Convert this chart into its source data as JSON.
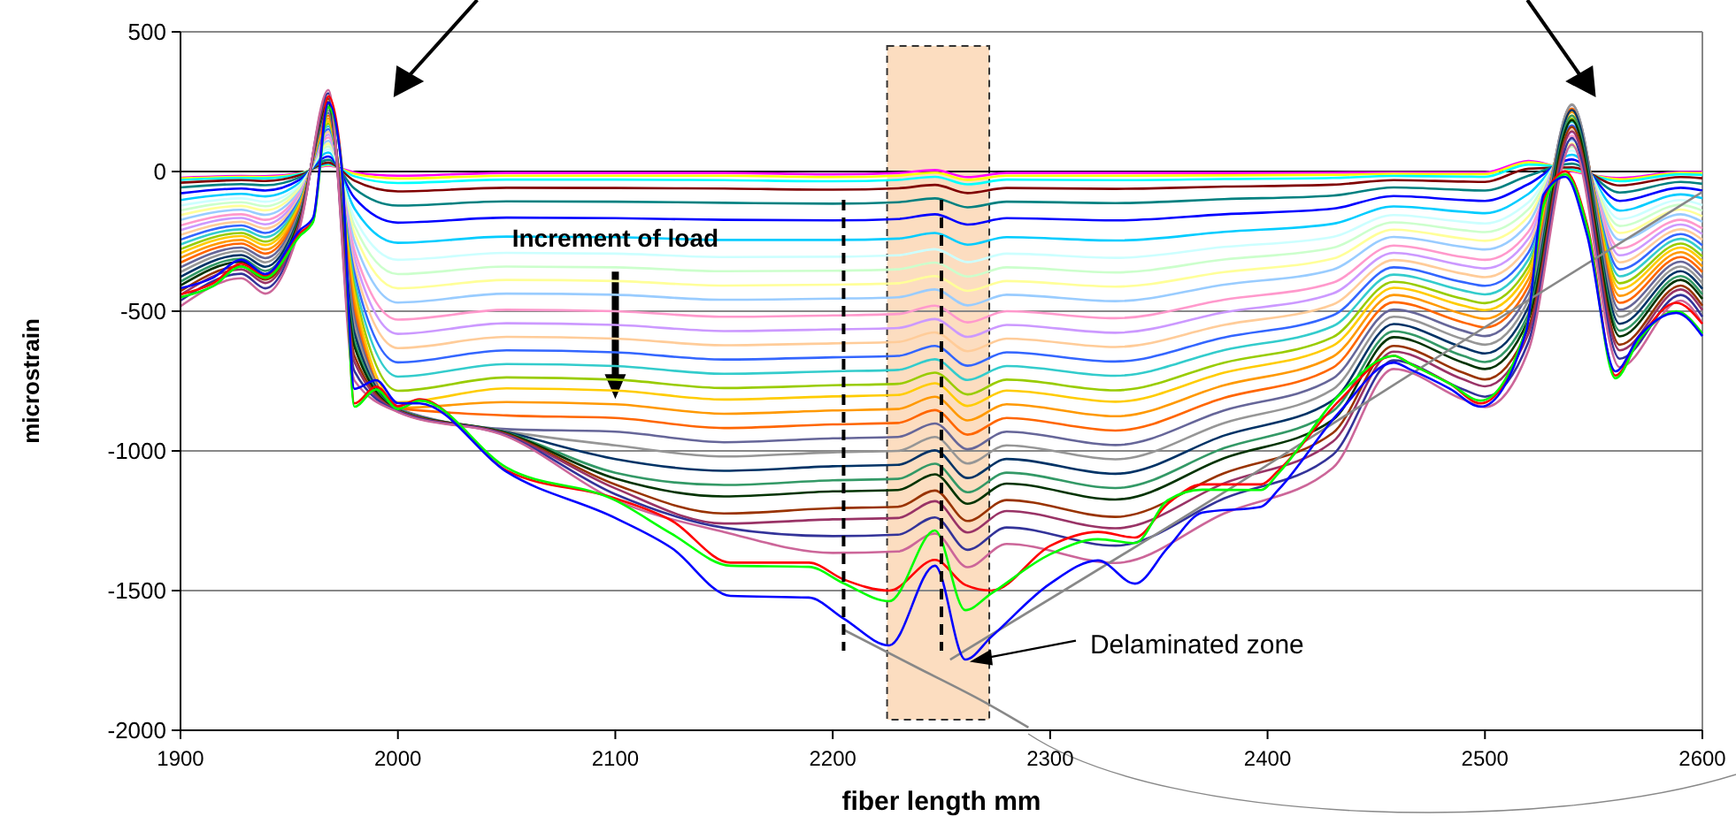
{
  "chart_data": {
    "type": "line",
    "xlabel": "fiber length  mm",
    "ylabel": "microstrain",
    "xlim": [
      1900,
      2600
    ],
    "xticks": [
      1900,
      2000,
      2100,
      2200,
      2300,
      2400,
      2500,
      2600
    ],
    "ylim": [
      -2000,
      500
    ],
    "yticks": [
      -2000,
      -1500,
      -1000,
      -500,
      0,
      500
    ],
    "grid": "y",
    "marker": "none",
    "line_style": "solid",
    "x": [
      1900,
      1928,
      1939,
      1955,
      1968,
      1980,
      2000,
      2050,
      2100,
      2150,
      2200,
      2230,
      2247,
      2262,
      2280,
      2330,
      2380,
      2430,
      2458,
      2490,
      2500,
      2520,
      2540,
      2562,
      2590,
      2600
    ],
    "annotations": [
      {
        "text": "Increment of load",
        "x": 2100,
        "y": -270
      },
      {
        "text": "Delaminated zone",
        "x": 2263,
        "y": -1755
      }
    ],
    "ref_lines": [
      {
        "axis": "x",
        "value": 2205,
        "line_style": "dashed",
        "color": "#000000"
      },
      {
        "axis": "x",
        "value": 2250,
        "line_style": "dashed",
        "color": "#000000"
      }
    ],
    "bands": [
      {
        "axis": "x",
        "from": 2225,
        "to": 2272,
        "color": "#fbd5b0"
      }
    ],
    "series": [
      {
        "color": "#ff00ff",
        "values": [
          -22,
          -16,
          -17,
          -6,
          21,
          -3,
          -15,
          -5,
          -5,
          -5,
          -10,
          -5,
          5,
          -20,
          -5,
          -5,
          -5,
          -4,
          -3,
          -3,
          -3,
          38,
          1,
          -23,
          -2,
          -2
        ]
      },
      {
        "color": "#ffff00",
        "values": [
          -25,
          -19,
          -20,
          -7,
          23,
          -8,
          -25,
          -15,
          -15,
          -15,
          -20,
          -15,
          -4,
          -30,
          -15,
          -15,
          -14,
          -12,
          -8,
          -9,
          -9,
          33,
          4,
          -28,
          -5,
          -6
        ]
      },
      {
        "color": "#00ffff",
        "values": [
          -30,
          -23,
          -24,
          -9,
          26,
          -17,
          -41,
          -29,
          -29,
          -31,
          -35,
          -30,
          -19,
          -46,
          -29,
          -31,
          -27,
          -23,
          -16,
          -18,
          -19,
          25,
          8,
          -35,
          -10,
          -12
        ]
      },
      {
        "color": "#800000",
        "values": [
          -40,
          -31,
          -34,
          -13,
          32,
          -33,
          -71,
          -58,
          -59,
          -61,
          -65,
          -60,
          -48,
          -77,
          -59,
          -62,
          -54,
          -47,
          -31,
          -36,
          -37,
          10,
          15,
          -50,
          -20,
          -24
        ]
      },
      {
        "color": "#008080",
        "values": [
          -57,
          -45,
          -49,
          -20,
          42,
          -61,
          -122,
          -107,
          -108,
          -112,
          -115,
          -110,
          -96,
          -128,
          -108,
          -113,
          -99,
          -86,
          -57,
          -66,
          -68,
          -15,
          28,
          -75,
          -37,
          -44
        ]
      },
      {
        "color": "#0000ff",
        "values": [
          -78,
          -61,
          -68,
          -29,
          54,
          -94,
          -183,
          -165,
          -167,
          -173,
          -175,
          -170,
          -153,
          -190,
          -167,
          -175,
          -153,
          -133,
          -88,
          -102,
          -105,
          -45,
          43,
          -105,
          -58,
          -68
        ]
      },
      {
        "color": "#00ccff",
        "values": [
          -102,
          -80,
          -89,
          -39,
          68,
          -132,
          -255,
          -233,
          -235,
          -245,
          -245,
          -240,
          -220,
          -262,
          -235,
          -247,
          -216,
          -187,
          -125,
          -144,
          -149,
          -80,
          60,
          -140,
          -82,
          -96
        ]
      },
      {
        "color": "#ccffff",
        "values": [
          -122,
          -96,
          -108,
          -47,
          80,
          -165,
          -316,
          -291,
          -294,
          -306,
          -305,
          -300,
          -278,
          -324,
          -294,
          -309,
          -270,
          -234,
          -156,
          -180,
          -186,
          -110,
          75,
          -170,
          -102,
          -120
        ]
      },
      {
        "color": "#ccffcc",
        "values": [
          -139,
          -110,
          -124,
          -54,
          90,
          -193,
          -367,
          -340,
          -343,
          -357,
          -355,
          -350,
          -326,
          -376,
          -343,
          -361,
          -315,
          -273,
          -182,
          -210,
          -217,
          -135,
          88,
          -195,
          -119,
          -140
        ]
      },
      {
        "color": "#ffff99",
        "values": [
          -156,
          -123,
          -139,
          -61,
          100,
          -220,
          -418,
          -388,
          -392,
          -408,
          -405,
          -400,
          -374,
          -427,
          -392,
          -412,
          -360,
          -312,
          -208,
          -240,
          -248,
          -160,
          100,
          -220,
          -136,
          -160
        ]
      },
      {
        "color": "#99ccff",
        "values": [
          -173,
          -137,
          -155,
          -68,
          110,
          -248,
          -469,
          -437,
          -441,
          -459,
          -455,
          -450,
          -422,
          -479,
          -441,
          -464,
          -405,
          -351,
          -234,
          -270,
          -279,
          -185,
          113,
          -245,
          -153,
          -180
        ]
      },
      {
        "color": "#ff99cc",
        "values": [
          -193,
          -153,
          -173,
          -76,
          122,
          -281,
          -530,
          -495,
          -500,
          -520,
          -515,
          -510,
          -480,
          -540,
          -500,
          -525,
          -459,
          -398,
          -265,
          -306,
          -316,
          -215,
          128,
          -275,
          -173,
          -204
        ]
      },
      {
        "color": "#cc99ff",
        "values": [
          -210,
          -166,
          -189,
          -83,
          132,
          -308,
          -581,
          -543,
          -549,
          -571,
          -565,
          -560,
          -528,
          -592,
          -549,
          -577,
          -504,
          -437,
          -291,
          -336,
          -347,
          -240,
          140,
          -300,
          -190,
          -224
        ]
      },
      {
        "color": "#ffcc99",
        "values": [
          -227,
          -180,
          -204,
          -90,
          142,
          -336,
          -632,
          -592,
          -598,
          -622,
          -615,
          -610,
          -576,
          -643,
          -598,
          -628,
          -549,
          -476,
          -317,
          -366,
          -378,
          -265,
          153,
          -325,
          -207,
          -244
        ]
      },
      {
        "color": "#3366ff",
        "values": [
          -244,
          -193,
          -220,
          -97,
          152,
          -363,
          -683,
          -640,
          -647,
          -673,
          -665,
          -660,
          -624,
          -695,
          -647,
          -680,
          -594,
          -515,
          -343,
          -396,
          -409,
          -290,
          165,
          -350,
          -224,
          -264
        ]
      },
      {
        "color": "#33cccc",
        "values": [
          -261,
          -207,
          -235,
          -104,
          162,
          -391,
          -734,
          -689,
          -696,
          -724,
          -715,
          -710,
          -672,
          -746,
          -696,
          -731,
          -639,
          -554,
          -369,
          -426,
          -440,
          -315,
          178,
          -375,
          -241,
          -284
        ]
      },
      {
        "color": "#99cc00",
        "values": [
          -278,
          -220,
          -251,
          -111,
          172,
          -418,
          -785,
          -737,
          -745,
          -775,
          -765,
          -760,
          -720,
          -798,
          -745,
          -783,
          -684,
          -593,
          -395,
          -456,
          -471,
          -340,
          190,
          -400,
          -258,
          -304
        ]
      },
      {
        "color": "#ffcc00",
        "values": [
          -292,
          -231,
          -263,
          -117,
          180,
          -440,
          -826,
          -776,
          -784,
          -816,
          -805,
          -800,
          -758,
          -839,
          -784,
          -824,
          -720,
          -624,
          -416,
          -480,
          -496,
          -360,
          200,
          -420,
          -272,
          -320
        ]
      },
      {
        "color": "#ff9900",
        "values": [
          -309,
          -245,
          -279,
          -124,
          190,
          -468,
          -846,
          -825,
          -833,
          -867,
          -855,
          -850,
          -806,
          -891,
          -833,
          -876,
          -765,
          -663,
          -442,
          -510,
          -527,
          -385,
          213,
          -445,
          -289,
          -340
        ]
      },
      {
        "color": "#ff6600",
        "values": [
          -326,
          -258,
          -294,
          -131,
          200,
          -495,
          -847,
          -873,
          -882,
          -918,
          -905,
          -900,
          -854,
          -942,
          -882,
          -927,
          -810,
          -702,
          -468,
          -540,
          -558,
          -410,
          225,
          -470,
          -306,
          -360
        ]
      },
      {
        "color": "#666699",
        "values": [
          -343,
          -272,
          -310,
          -138,
          210,
          -523,
          -849,
          -922,
          -931,
          -969,
          -955,
          -950,
          -902,
          -994,
          -931,
          -979,
          -855,
          -741,
          -494,
          -570,
          -589,
          -435,
          238,
          -495,
          -323,
          -380
        ]
      },
      {
        "color": "#969696",
        "values": [
          -360,
          -285,
          -325,
          -145,
          220,
          -550,
          -850,
          -930,
          -980,
          -1020,
          -1005,
          -1000,
          -950,
          -1045,
          -980,
          -1030,
          -900,
          -780,
          -520,
          -600,
          -620,
          -460,
          240,
          -520,
          -340,
          -400
        ]
      },
      {
        "color": "#003366",
        "values": [
          -377,
          -299,
          -341,
          -152,
          230,
          -578,
          -852,
          -933,
          -1029,
          -1071,
          -1055,
          -1050,
          -998,
          -1097,
          -1029,
          -1082,
          -945,
          -819,
          -546,
          -630,
          -651,
          -485,
          220,
          -545,
          -357,
          -420
        ]
      },
      {
        "color": "#339966",
        "values": [
          -394,
          -312,
          -356,
          -159,
          240,
          -605,
          -853,
          -935,
          -1078,
          -1122,
          -1105,
          -1100,
          -1046,
          -1148,
          -1078,
          -1133,
          -990,
          -858,
          -572,
          -660,
          -682,
          -510,
          200,
          -570,
          -374,
          -440
        ]
      },
      {
        "color": "#003300",
        "values": [
          -408,
          -323,
          -368,
          -165,
          248,
          -627,
          -854,
          -937,
          -1099,
          -1163,
          -1145,
          -1140,
          -1084,
          -1189,
          -1117,
          -1174,
          -1026,
          -889,
          -593,
          -684,
          -707,
          -530,
          184,
          -590,
          -388,
          -456
        ]
      },
      {
        "color": "#993300",
        "values": [
          -428,
          -339,
          -387,
          -173,
          260,
          -660,
          -856,
          -940,
          -1120,
          -1224,
          -1205,
          -1200,
          -1142,
          -1251,
          -1176,
          -1236,
          -1080,
          -936,
          -624,
          -720,
          -744,
          -560,
          160,
          -620,
          -408,
          -480
        ]
      },
      {
        "color": "#993366",
        "values": [
          -442,
          -350,
          -399,
          -179,
          268,
          -682,
          -857,
          -942,
          -1134,
          -1260,
          -1245,
          -1240,
          -1180,
          -1292,
          -1215,
          -1277,
          -1116,
          -967,
          -645,
          -744,
          -769,
          -580,
          144,
          -640,
          -422,
          -496
        ]
      },
      {
        "color": "#333399",
        "values": [
          -462,
          -366,
          -418,
          -187,
          280,
          -715,
          -859,
          -945,
          -1155,
          -1275,
          -1305,
          -1300,
          -1238,
          -1354,
          -1274,
          -1339,
          -1170,
          -1014,
          -676,
          -780,
          -806,
          -610,
          120,
          -670,
          -442,
          -520
        ]
      },
      {
        "color": "#cc6699",
        "values": [
          -482,
          -382,
          -437,
          -195,
          292,
          -748,
          -861,
          -948,
          -1176,
          -1290,
          -1365,
          -1360,
          -1296,
          -1416,
          -1333,
          -1401,
          -1224,
          -1061,
          -707,
          -816,
          -843,
          -640,
          96,
          -700,
          -462,
          -544
        ]
      },
      {
        "color": "#888888",
        "x": [
          2254,
          2387,
          2500,
          2600
        ],
        "values": [
          -1747,
          -1114,
          -557,
          -73
        ]
      },
      {
        "color": "#888888",
        "x": [
          2205,
          2240,
          2270,
          2290
        ],
        "values": [
          -1640,
          -1780,
          -1900,
          -1990
        ]
      },
      {
        "color": "#ff0000",
        "x": [
          1900,
          1915,
          1928,
          1939,
          1955,
          1961,
          1968,
          1974,
          1980,
          1990,
          2000,
          2010,
          2050,
          2100,
          2126,
          2153,
          2189,
          2205,
          2226,
          2247,
          2261,
          2273,
          2300,
          2322,
          2339,
          2354,
          2370,
          2397,
          2405,
          2433,
          2458,
          2466,
          2484,
          2498,
          2519,
          2527,
          2537,
          2547,
          2560,
          2571,
          2588,
          2600
        ],
        "values": [
          -440,
          -400,
          -330,
          -375,
          -220,
          -175,
          270,
          35,
          -830,
          -770,
          -840,
          -815,
          -1070,
          -1170,
          -1250,
          -1400,
          -1400,
          -1460,
          -1500,
          -1390,
          -1480,
          -1500,
          -1340,
          -1290,
          -1310,
          -1190,
          -1120,
          -1120,
          -1070,
          -820,
          -660,
          -690,
          -760,
          -830,
          -560,
          -100,
          0,
          -190,
          -730,
          -600,
          -470,
          -545
        ]
      },
      {
        "color": "#00ff00",
        "x": [
          1900,
          1915,
          1928,
          1939,
          1955,
          1961,
          1968,
          1974,
          1980,
          1990,
          2000,
          2010,
          2050,
          2100,
          2126,
          2153,
          2189,
          2205,
          2226,
          2247,
          2261,
          2273,
          2300,
          2322,
          2339,
          2354,
          2370,
          2397,
          2405,
          2433,
          2458,
          2466,
          2484,
          2498,
          2519,
          2527,
          2537,
          2547,
          2560,
          2571,
          2588,
          2600
        ],
        "values": [
          -450,
          -410,
          -340,
          -380,
          -230,
          -180,
          230,
          30,
          -842,
          -780,
          -850,
          -820,
          -1060,
          -1177,
          -1297,
          -1411,
          -1415,
          -1474,
          -1538,
          -1285,
          -1570,
          -1510,
          -1370,
          -1316,
          -1330,
          -1177,
          -1139,
          -1140,
          -1080,
          -800,
          -660,
          -690,
          -760,
          -820,
          -560,
          -120,
          -10,
          -200,
          -740,
          -600,
          -500,
          -580
        ]
      },
      {
        "color": "#0000ff",
        "x": [
          1900,
          1915,
          1928,
          1939,
          1955,
          1961,
          1968,
          1974,
          1980,
          1990,
          2000,
          2010,
          2050,
          2100,
          2126,
          2153,
          2189,
          2205,
          2226,
          2247,
          2261,
          2273,
          2300,
          2322,
          2339,
          2354,
          2370,
          2397,
          2405,
          2433,
          2458,
          2466,
          2484,
          2498,
          2519,
          2527,
          2537,
          2547,
          2560,
          2571,
          2588,
          2600
        ],
        "values": [
          -418,
          -380,
          -316,
          -367,
          -209,
          -165,
          247,
          25,
          -778,
          -747,
          -829,
          -830,
          -1075,
          -1240,
          -1348,
          -1519,
          -1525,
          -1600,
          -1696,
          -1411,
          -1747,
          -1665,
          -1475,
          -1392,
          -1475,
          -1348,
          -1221,
          -1200,
          -1139,
          -861,
          -684,
          -710,
          -778,
          -842,
          -570,
          -82,
          -19,
          -228,
          -715,
          -589,
          -506,
          -589
        ]
      }
    ]
  }
}
